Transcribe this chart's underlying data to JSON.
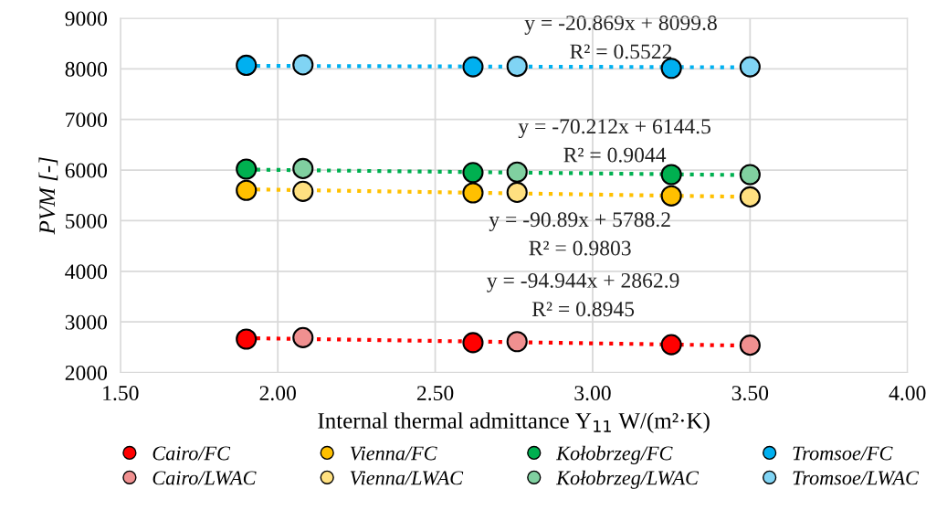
{
  "chart_data": {
    "type": "scatter",
    "xlabel": "Internal thermal admittance Y$_{11}$ W/(m²·K)",
    "ylabel": "PVM [-]",
    "xlim": [
      1.5,
      4.0
    ],
    "xticks": [
      {
        "value": 1.5,
        "label": "1.50"
      },
      {
        "value": 2.0,
        "label": "2.00"
      },
      {
        "value": 2.5,
        "label": "2.50"
      },
      {
        "value": 3.0,
        "label": "3.00"
      },
      {
        "value": 3.5,
        "label": "3.50"
      },
      {
        "value": 4.0,
        "label": "4.00"
      }
    ],
    "ylim": [
      2000,
      9000
    ],
    "yticks": [
      2000,
      3000,
      4000,
      5000,
      6000,
      7000,
      8000,
      9000
    ],
    "grid": true,
    "legend": "bottom",
    "marker": "circle",
    "series": [
      {
        "name": "Cairo/FC",
        "color": "#ff0000",
        "x": [
          1.9,
          2.62,
          3.25
        ],
        "values": [
          2660,
          2590,
          2550
        ]
      },
      {
        "name": "Vienna/FC",
        "color": "#ffc000",
        "x": [
          1.9,
          2.62,
          3.25
        ],
        "values": [
          5600,
          5550,
          5490
        ]
      },
      {
        "name": "Kołobrzeg/FC",
        "color": "#00b050",
        "x": [
          1.9,
          2.62,
          3.25
        ],
        "values": [
          6020,
          5950,
          5910
        ]
      },
      {
        "name": "Tromsoe/FC",
        "color": "#00b0f0",
        "x": [
          1.9,
          2.62,
          3.25
        ],
        "values": [
          8070,
          8040,
          8010
        ]
      },
      {
        "name": "Cairo/LWAC",
        "color": "#f09090",
        "x": [
          2.08,
          2.76,
          3.5
        ],
        "values": [
          2690,
          2610,
          2540
        ]
      },
      {
        "name": "Vienna/LWAC",
        "color": "#ffe080",
        "x": [
          2.08,
          2.76,
          3.5
        ],
        "values": [
          5580,
          5560,
          5470
        ]
      },
      {
        "name": "Kołobrzeg/LWAC",
        "color": "#80d0a0",
        "x": [
          2.08,
          2.76,
          3.5
        ],
        "values": [
          6030,
          5960,
          5910
        ]
      },
      {
        "name": "Tromsoe/LWAC",
        "color": "#80d4f4",
        "x": [
          2.08,
          2.76,
          3.5
        ],
        "values": [
          8080,
          8050,
          8040
        ]
      },
      {
        "type": "line",
        "color": "#ff0000",
        "line_style": "dotted",
        "marker": "none",
        "x": [
          1.9,
          3.5
        ],
        "values": [
          2680,
          2530
        ]
      },
      {
        "type": "line",
        "color": "#ffc000",
        "line_style": "dotted",
        "marker": "none",
        "x": [
          1.9,
          3.5
        ],
        "values": [
          5620,
          5470
        ]
      },
      {
        "type": "line",
        "color": "#00b050",
        "line_style": "dotted",
        "marker": "none",
        "x": [
          1.9,
          3.5
        ],
        "values": [
          6010,
          5900
        ]
      },
      {
        "type": "line",
        "color": "#00b0f0",
        "line_style": "dotted",
        "marker": "none",
        "x": [
          1.9,
          3.5
        ],
        "values": [
          8060,
          8030
        ]
      }
    ],
    "annotations": [
      "y = -20.869x + 8099.8\nR² = 0.5522",
      "y = -70.212x + 6144.5\nR² = 0.9044",
      "y = -90.89x + 5788.2\nR² = 0.9803",
      "y = -94.944x + 2862.9\nR² = 0.8945"
    ]
  }
}
